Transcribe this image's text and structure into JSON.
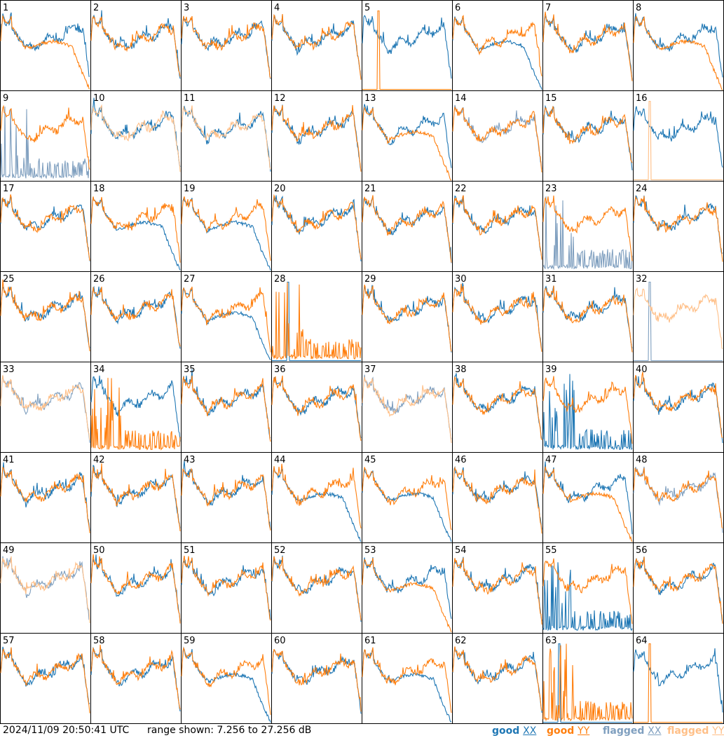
{
  "footer": {
    "timestamp": "2024/11/09 20:50:41 UTC",
    "range_text": "range shown: 7.256 to 27.256 dB"
  },
  "legend": [
    {
      "prefix": "good",
      "suffix": "XX",
      "color": "#1f77b4"
    },
    {
      "prefix": "good",
      "suffix": "YY",
      "color": "#ff7f0e"
    },
    {
      "prefix": "flagged",
      "suffix": "XX",
      "color": "#7f9fbf"
    },
    {
      "prefix": "flagged",
      "suffix": "YY",
      "color": "#ffbf87"
    }
  ],
  "colors": {
    "good_xx": "#1f77b4",
    "good_yy": "#ff7f0e",
    "flagged_xx": "#7f9fbf",
    "flagged_yy": "#ffbf87"
  },
  "chart_data": {
    "type": "line",
    "layout": "8x8 small multiples",
    "ylim": [
      7.256,
      27.256
    ],
    "y_unit": "dB",
    "panels": [
      {
        "id": "1",
        "xx": "good",
        "yy": "good",
        "xx_shape": "normal",
        "yy_shape": "rolloff"
      },
      {
        "id": "2",
        "xx": "good",
        "yy": "good",
        "xx_shape": "normal",
        "yy_shape": "normal"
      },
      {
        "id": "3",
        "xx": "good",
        "yy": "good",
        "xx_shape": "normal",
        "yy_shape": "normal"
      },
      {
        "id": "4",
        "xx": "good",
        "yy": "good",
        "xx_shape": "normal",
        "yy_shape": "normal"
      },
      {
        "id": "5",
        "xx": "good",
        "yy": "good",
        "xx_shape": "normal",
        "yy_shape": "dead"
      },
      {
        "id": "6",
        "xx": "good",
        "yy": "good",
        "xx_shape": "rolloff",
        "yy_shape": "normal"
      },
      {
        "id": "7",
        "xx": "good",
        "yy": "good",
        "xx_shape": "normal",
        "yy_shape": "normal"
      },
      {
        "id": "8",
        "xx": "good",
        "yy": "good",
        "xx_shape": "normal",
        "yy_shape": "rolloff"
      },
      {
        "id": "9",
        "xx": "flagged",
        "yy": "good",
        "xx_shape": "spiky",
        "yy_shape": "normal"
      },
      {
        "id": "10",
        "xx": "good",
        "yy": "flagged",
        "xx_shape": "normal",
        "yy_shape": "normal"
      },
      {
        "id": "11",
        "xx": "good",
        "yy": "flagged",
        "xx_shape": "normal",
        "yy_shape": "normal"
      },
      {
        "id": "12",
        "xx": "good",
        "yy": "good",
        "xx_shape": "normal",
        "yy_shape": "normal"
      },
      {
        "id": "13",
        "xx": "good",
        "yy": "good",
        "xx_shape": "normal",
        "yy_shape": "rolloff"
      },
      {
        "id": "14",
        "xx": "flagged",
        "yy": "good",
        "xx_shape": "normal",
        "yy_shape": "normal"
      },
      {
        "id": "15",
        "xx": "good",
        "yy": "good",
        "xx_shape": "normal",
        "yy_shape": "normal"
      },
      {
        "id": "16",
        "xx": "good",
        "yy": "flagged",
        "xx_shape": "normal",
        "yy_shape": "dead"
      },
      {
        "id": "17",
        "xx": "good",
        "yy": "good",
        "xx_shape": "normal",
        "yy_shape": "normal"
      },
      {
        "id": "18",
        "xx": "good",
        "yy": "good",
        "xx_shape": "rolloff",
        "yy_shape": "normal"
      },
      {
        "id": "19",
        "xx": "good",
        "yy": "good",
        "xx_shape": "rolloff",
        "yy_shape": "normal"
      },
      {
        "id": "20",
        "xx": "good",
        "yy": "good",
        "xx_shape": "normal",
        "yy_shape": "normal"
      },
      {
        "id": "21",
        "xx": "good",
        "yy": "good",
        "xx_shape": "normal",
        "yy_shape": "normal"
      },
      {
        "id": "22",
        "xx": "good",
        "yy": "good",
        "xx_shape": "normal",
        "yy_shape": "normal"
      },
      {
        "id": "23",
        "xx": "flagged",
        "yy": "good",
        "xx_shape": "spiky",
        "yy_shape": "normal"
      },
      {
        "id": "24",
        "xx": "good",
        "yy": "good",
        "xx_shape": "normal",
        "yy_shape": "normal"
      },
      {
        "id": "25",
        "xx": "good",
        "yy": "good",
        "xx_shape": "normal",
        "yy_shape": "normal"
      },
      {
        "id": "26",
        "xx": "good",
        "yy": "good",
        "xx_shape": "normal",
        "yy_shape": "normal"
      },
      {
        "id": "27",
        "xx": "good",
        "yy": "good",
        "xx_shape": "rolloff",
        "yy_shape": "normal"
      },
      {
        "id": "28",
        "xx": "good",
        "yy": "good",
        "xx_shape": "dead",
        "yy_shape": "spiky"
      },
      {
        "id": "29",
        "xx": "good",
        "yy": "good",
        "xx_shape": "normal",
        "yy_shape": "normal"
      },
      {
        "id": "30",
        "xx": "good",
        "yy": "good",
        "xx_shape": "normal",
        "yy_shape": "normal"
      },
      {
        "id": "31",
        "xx": "good",
        "yy": "good",
        "xx_shape": "normal",
        "yy_shape": "normal"
      },
      {
        "id": "32",
        "xx": "flagged",
        "yy": "flagged",
        "xx_shape": "dead",
        "yy_shape": "normal"
      },
      {
        "id": "33",
        "xx": "flagged",
        "yy": "flagged",
        "xx_shape": "normal",
        "yy_shape": "normal"
      },
      {
        "id": "34",
        "xx": "good",
        "yy": "good",
        "xx_shape": "normal",
        "yy_shape": "spiky"
      },
      {
        "id": "35",
        "xx": "good",
        "yy": "good",
        "xx_shape": "normal",
        "yy_shape": "normal"
      },
      {
        "id": "36",
        "xx": "good",
        "yy": "good",
        "xx_shape": "normal",
        "yy_shape": "normal"
      },
      {
        "id": "37",
        "xx": "flagged",
        "yy": "flagged",
        "xx_shape": "normal",
        "yy_shape": "normal"
      },
      {
        "id": "38",
        "xx": "good",
        "yy": "good",
        "xx_shape": "normal",
        "yy_shape": "normal"
      },
      {
        "id": "39",
        "xx": "good",
        "yy": "good",
        "xx_shape": "spiky",
        "yy_shape": "normal"
      },
      {
        "id": "40",
        "xx": "good",
        "yy": "good",
        "xx_shape": "normal",
        "yy_shape": "normal"
      },
      {
        "id": "41",
        "xx": "good",
        "yy": "good",
        "xx_shape": "normal",
        "yy_shape": "normal"
      },
      {
        "id": "42",
        "xx": "good",
        "yy": "good",
        "xx_shape": "normal",
        "yy_shape": "normal"
      },
      {
        "id": "43",
        "xx": "good",
        "yy": "good",
        "xx_shape": "normal",
        "yy_shape": "normal"
      },
      {
        "id": "44",
        "xx": "good",
        "yy": "good",
        "xx_shape": "rolloff",
        "yy_shape": "normal"
      },
      {
        "id": "45",
        "xx": "good",
        "yy": "good",
        "xx_shape": "rolloff",
        "yy_shape": "normal"
      },
      {
        "id": "46",
        "xx": "good",
        "yy": "good",
        "xx_shape": "normal",
        "yy_shape": "normal"
      },
      {
        "id": "47",
        "xx": "good",
        "yy": "good",
        "xx_shape": "normal",
        "yy_shape": "rolloff"
      },
      {
        "id": "48",
        "xx": "flagged",
        "yy": "good",
        "xx_shape": "normal",
        "yy_shape": "normal"
      },
      {
        "id": "49",
        "xx": "flagged",
        "yy": "flagged",
        "xx_shape": "normal",
        "yy_shape": "normal"
      },
      {
        "id": "50",
        "xx": "good",
        "yy": "good",
        "xx_shape": "normal",
        "yy_shape": "normal"
      },
      {
        "id": "51",
        "xx": "good",
        "yy": "good",
        "xx_shape": "normal",
        "yy_shape": "normal"
      },
      {
        "id": "52",
        "xx": "good",
        "yy": "good",
        "xx_shape": "normal",
        "yy_shape": "normal"
      },
      {
        "id": "53",
        "xx": "good",
        "yy": "good",
        "xx_shape": "normal",
        "yy_shape": "rolloff"
      },
      {
        "id": "54",
        "xx": "good",
        "yy": "good",
        "xx_shape": "normal",
        "yy_shape": "normal"
      },
      {
        "id": "55",
        "xx": "good",
        "yy": "good",
        "xx_shape": "spiky",
        "yy_shape": "normal"
      },
      {
        "id": "56",
        "xx": "good",
        "yy": "good",
        "xx_shape": "normal",
        "yy_shape": "normal"
      },
      {
        "id": "57",
        "xx": "good",
        "yy": "good",
        "xx_shape": "normal",
        "yy_shape": "normal"
      },
      {
        "id": "58",
        "xx": "good",
        "yy": "good",
        "xx_shape": "normal",
        "yy_shape": "normal"
      },
      {
        "id": "59",
        "xx": "good",
        "yy": "good",
        "xx_shape": "rolloff",
        "yy_shape": "normal"
      },
      {
        "id": "60",
        "xx": "good",
        "yy": "good",
        "xx_shape": "normal",
        "yy_shape": "normal"
      },
      {
        "id": "61",
        "xx": "good",
        "yy": "good",
        "xx_shape": "rolloff",
        "yy_shape": "normal"
      },
      {
        "id": "62",
        "xx": "good",
        "yy": "good",
        "xx_shape": "normal",
        "yy_shape": "normal"
      },
      {
        "id": "63",
        "xx": "good",
        "yy": "good",
        "xx_shape": "dead",
        "yy_shape": "spiky"
      },
      {
        "id": "64",
        "xx": "good",
        "yy": "good",
        "xx_shape": "normal",
        "yy_shape": "dead"
      }
    ]
  }
}
